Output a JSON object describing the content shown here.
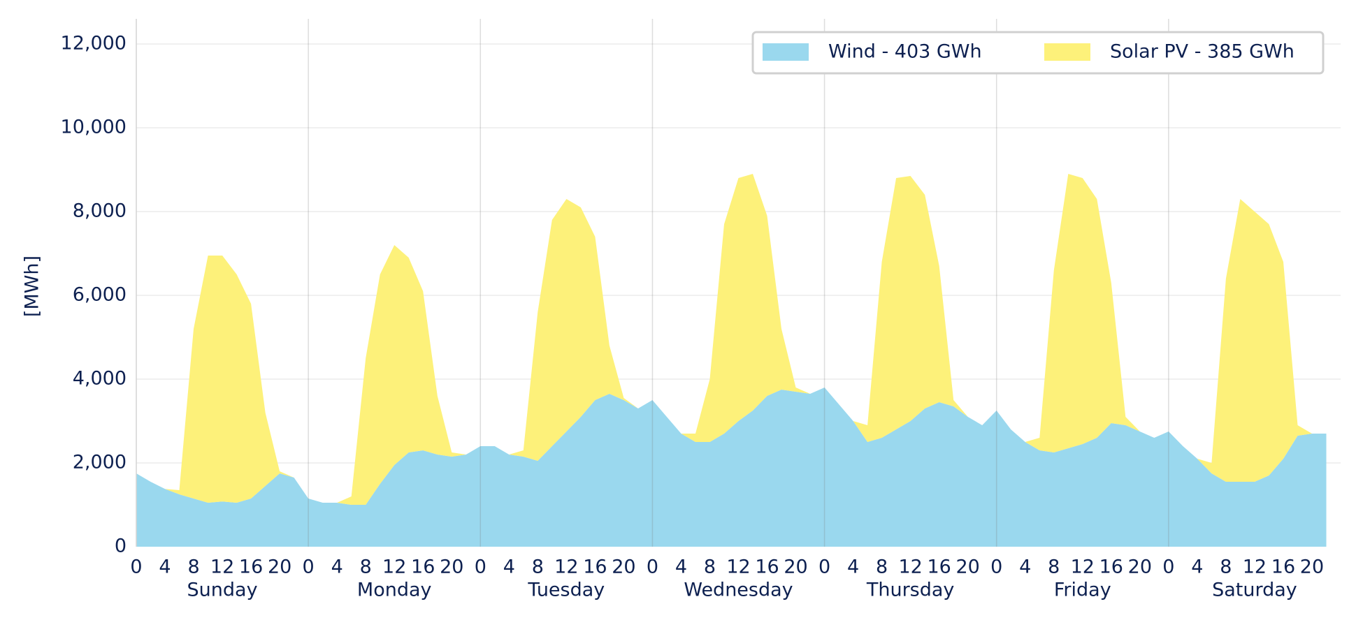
{
  "chart_data": {
    "type": "stacked_area",
    "y_label": "[MWh]",
    "x": [
      0,
      2,
      4,
      6,
      8,
      10,
      12,
      14,
      16,
      18,
      20,
      22,
      24,
      26,
      28,
      30,
      32,
      34,
      36,
      38,
      40,
      42,
      44,
      46,
      48,
      50,
      52,
      54,
      56,
      58,
      60,
      62,
      64,
      66,
      68,
      70,
      72,
      74,
      76,
      78,
      80,
      82,
      84,
      86,
      88,
      90,
      92,
      94,
      96,
      98,
      100,
      102,
      104,
      106,
      108,
      110,
      112,
      114,
      116,
      118,
      120,
      122,
      124,
      126,
      128,
      130,
      132,
      134,
      136,
      138,
      140,
      142,
      144,
      146,
      148,
      150,
      152,
      154,
      156,
      158,
      160,
      162,
      164,
      166
    ],
    "xlim": [
      0,
      168
    ],
    "xticks": [
      0,
      4,
      8,
      12,
      16,
      20,
      {
        "value": 24,
        "label": "0"
      },
      {
        "value": 28,
        "label": "4"
      },
      {
        "value": 32,
        "label": "8"
      },
      {
        "value": 36,
        "label": "12"
      },
      {
        "value": 40,
        "label": "16"
      },
      {
        "value": 44,
        "label": "20"
      },
      {
        "value": 48,
        "label": "0"
      },
      {
        "value": 52,
        "label": "4"
      },
      {
        "value": 56,
        "label": "8"
      },
      {
        "value": 60,
        "label": "12"
      },
      {
        "value": 64,
        "label": "16"
      },
      {
        "value": 68,
        "label": "20"
      },
      {
        "value": 72,
        "label": "0"
      },
      {
        "value": 76,
        "label": "4"
      },
      {
        "value": 80,
        "label": "8"
      },
      {
        "value": 84,
        "label": "12"
      },
      {
        "value": 88,
        "label": "16"
      },
      {
        "value": 92,
        "label": "20"
      },
      {
        "value": 96,
        "label": "0"
      },
      {
        "value": 100,
        "label": "4"
      },
      {
        "value": 104,
        "label": "8"
      },
      {
        "value": 108,
        "label": "12"
      },
      {
        "value": 112,
        "label": "16"
      },
      {
        "value": 116,
        "label": "20"
      },
      {
        "value": 120,
        "label": "0"
      },
      {
        "value": 124,
        "label": "4"
      },
      {
        "value": 128,
        "label": "8"
      },
      {
        "value": 132,
        "label": "12"
      },
      {
        "value": 136,
        "label": "16"
      },
      {
        "value": 140,
        "label": "20"
      },
      {
        "value": 144,
        "label": "0"
      },
      {
        "value": 148,
        "label": "4"
      },
      {
        "value": 152,
        "label": "8"
      },
      {
        "value": 156,
        "label": "12"
      },
      {
        "value": 160,
        "label": "16"
      },
      {
        "value": 164,
        "label": "20"
      }
    ],
    "days": [
      "Sunday",
      "Monday",
      "Tuesday",
      "Wednesday",
      "Thursday",
      "Friday",
      "Saturday"
    ],
    "ylim": [
      0,
      12600
    ],
    "yticks": [
      0,
      {
        "value": 2000,
        "label": "2,000"
      },
      {
        "value": 4000,
        "label": "4,000"
      },
      {
        "value": 6000,
        "label": "6,000"
      },
      {
        "value": 8000,
        "label": "8,000"
      },
      {
        "value": 10000,
        "label": "10,000"
      },
      {
        "value": 12000,
        "label": "12,000"
      }
    ],
    "grid": true,
    "legend": "upper right",
    "series": [
      {
        "name": "Wind - 403 GWh",
        "color": "#9ad8ee",
        "values": [
          1750,
          1550,
          1380,
          1250,
          1150,
          1050,
          1080,
          1050,
          1150,
          1450,
          1750,
          1650,
          1150,
          1050,
          1050,
          1000,
          1000,
          1500,
          1950,
          2250,
          2300,
          2200,
          2150,
          2200,
          2400,
          2400,
          2200,
          2150,
          2050,
          2400,
          2750,
          3100,
          3500,
          3650,
          3500,
          3300,
          3500,
          3100,
          2700,
          2500,
          2500,
          2700,
          3000,
          3250,
          3600,
          3750,
          3700,
          3650,
          3800,
          3400,
          3000,
          2500,
          2600,
          2800,
          3000,
          3300,
          3450,
          3350,
          3100,
          2900,
          3250,
          2800,
          2500,
          2300,
          2250,
          2350,
          2450,
          2600,
          2950,
          2900,
          2750,
          2600,
          2750,
          2400,
          2100,
          1750,
          1550,
          1550,
          1550,
          1700,
          2100,
          2650,
          2700,
          2700
        ]
      },
      {
        "name": "Solar PV - 385 GWh",
        "color": "#fdf17a",
        "values": [
          0,
          0,
          0,
          100,
          4050,
          5900,
          5870,
          5450,
          4650,
          1750,
          50,
          0,
          0,
          0,
          0,
          200,
          3500,
          5000,
          5250,
          4650,
          3800,
          1400,
          100,
          0,
          0,
          0,
          0,
          150,
          3550,
          5400,
          5550,
          5000,
          3900,
          1150,
          50,
          0,
          0,
          0,
          0,
          200,
          1500,
          5000,
          5800,
          5650,
          4300,
          1450,
          100,
          0,
          0,
          0,
          0,
          400,
          4200,
          6000,
          5850,
          5100,
          3250,
          150,
          0,
          0,
          0,
          0,
          0,
          300,
          4350,
          6550,
          6350,
          5700,
          3350,
          200,
          0,
          0,
          0,
          0,
          0,
          250,
          4850,
          6750,
          6450,
          6000,
          4700,
          250,
          0,
          0
        ]
      }
    ]
  }
}
